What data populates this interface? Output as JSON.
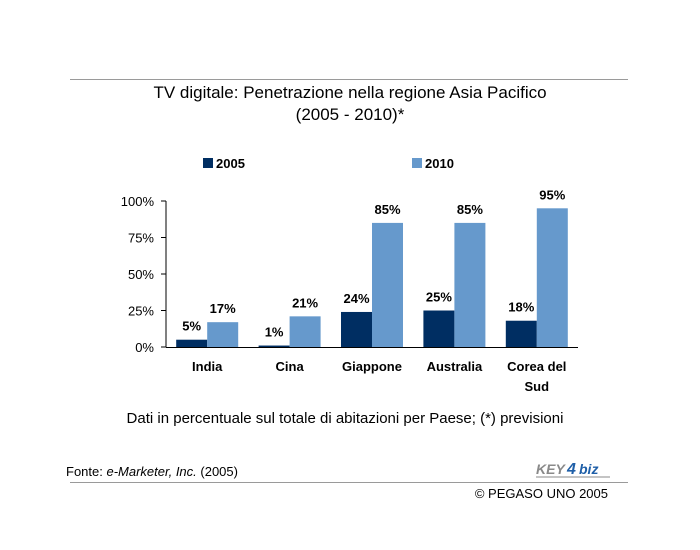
{
  "chart_data": {
    "type": "bar",
    "title": "TV digitale: Penetrazione nella regione Asia Pacifico",
    "subtitle": "(2005 - 2010)*",
    "categories": [
      [
        "India"
      ],
      [
        "Cina"
      ],
      [
        "Giappone"
      ],
      [
        "Australia"
      ],
      [
        "Corea del",
        "Sud"
      ]
    ],
    "series": [
      {
        "name": "2005",
        "color": "#002e62",
        "values": [
          5,
          1,
          24,
          25,
          18
        ],
        "labels": [
          "5%",
          "1%",
          "24%",
          "25%",
          "18%"
        ]
      },
      {
        "name": "2010",
        "color": "#6699cc",
        "values": [
          17,
          21,
          85,
          85,
          95
        ],
        "labels": [
          "17%",
          "21%",
          "85%",
          "85%",
          "95%"
        ]
      }
    ],
    "yticks": [
      "0%",
      "25%",
      "50%",
      "75%",
      "100%"
    ],
    "ytick_values": [
      0,
      25,
      50,
      75,
      100
    ],
    "ylim": [
      0,
      100
    ],
    "legend_position": "top",
    "grid": false
  },
  "footer": {
    "note": "Dati in percentuale sul totale di abitazioni per Paese; (*) previsioni",
    "source_prefix": "Fonte: ",
    "source_name": "e-Marketer, Inc.",
    "source_year": " (2005)",
    "copyright": "© PEGASO UNO 2005"
  },
  "logo": {
    "text_left": "KEY",
    "text_mid": "4",
    "text_right": "biz"
  }
}
